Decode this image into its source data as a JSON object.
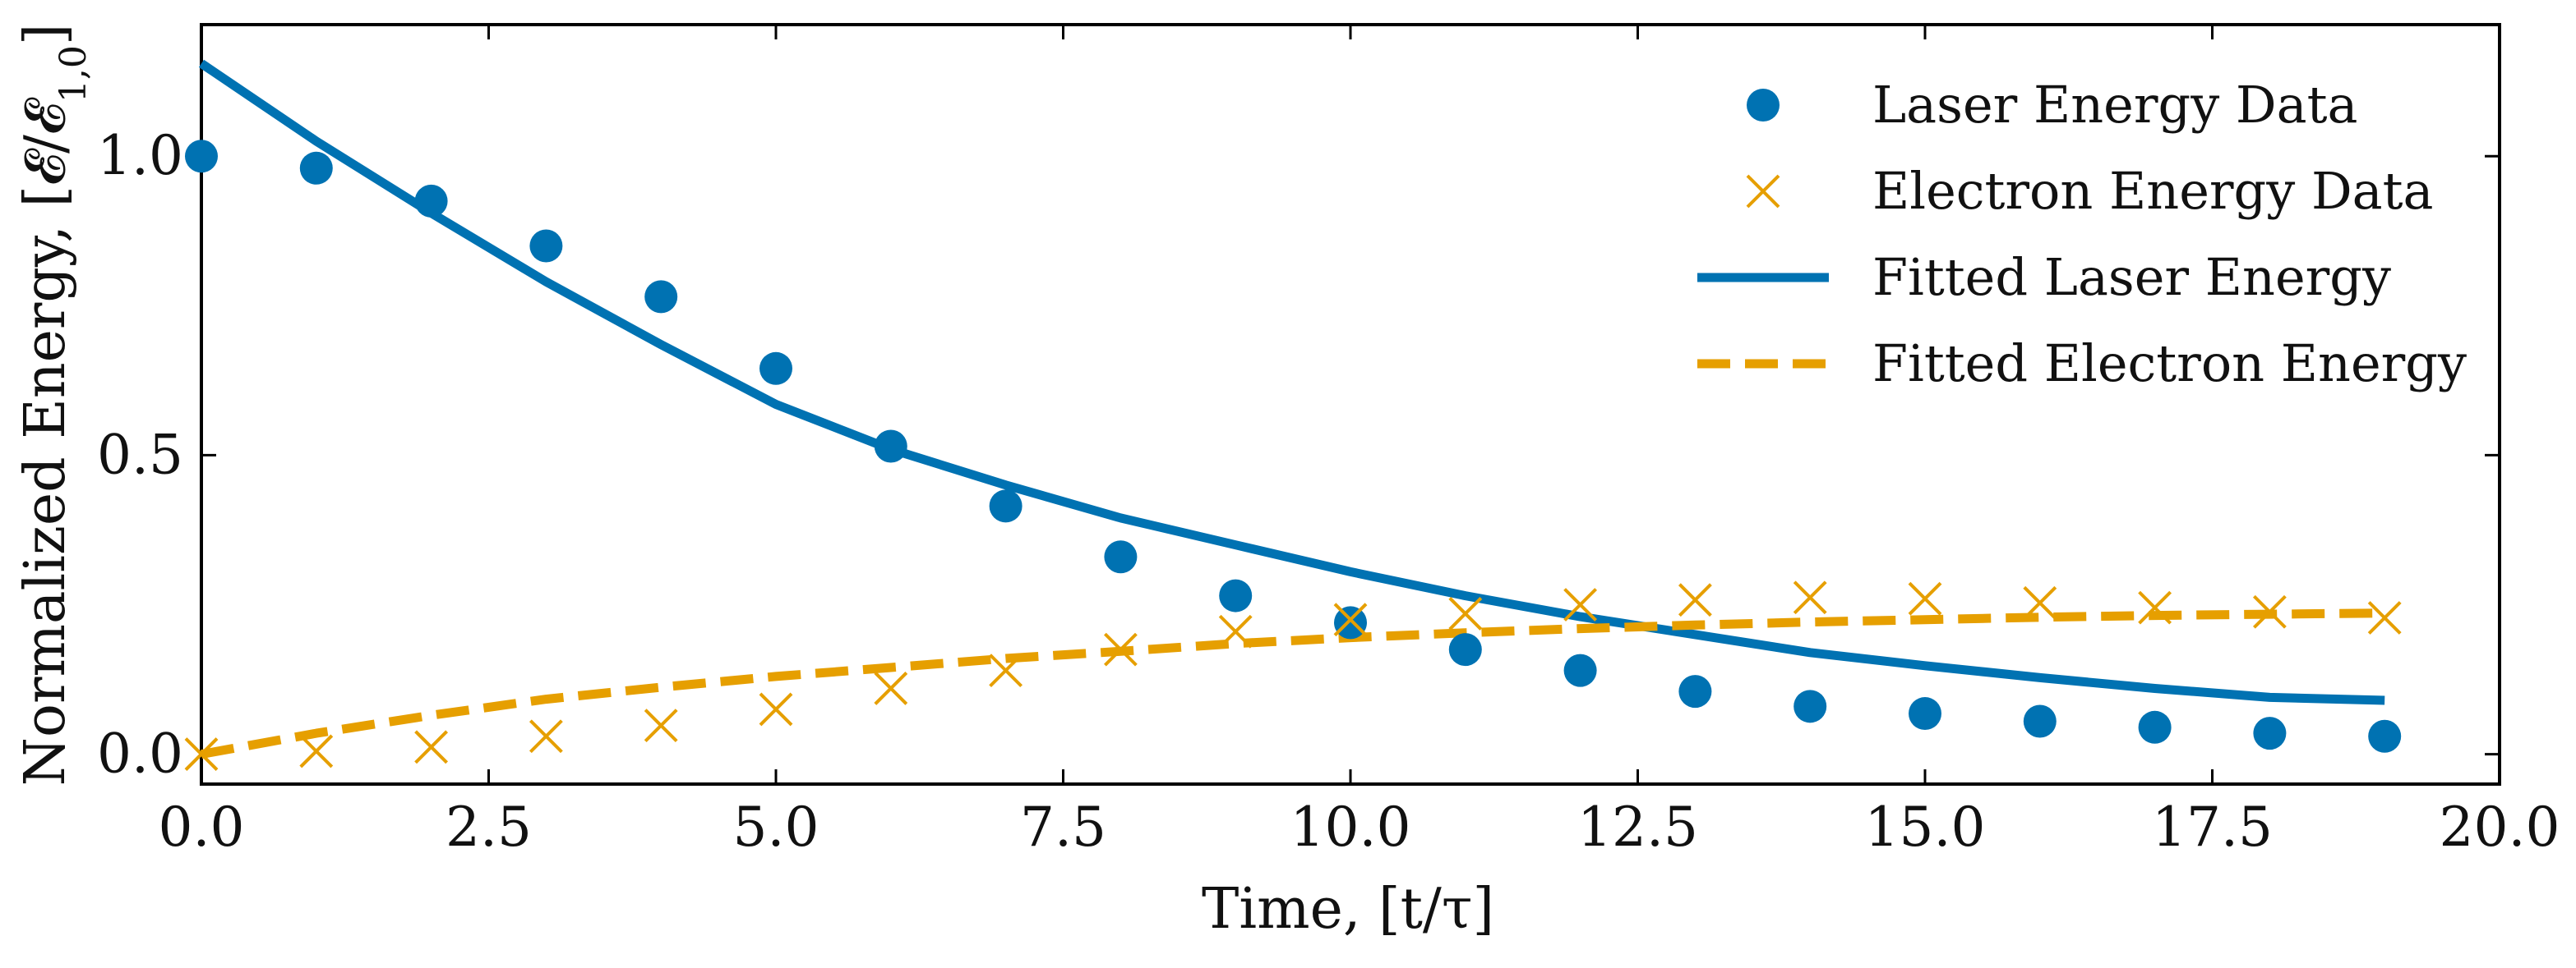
{
  "chart_data": {
    "type": "line",
    "title": "",
    "xlabel": "Time, [t/τ]",
    "ylabel_prefix": "Normalized Energy, ",
    "ylabel_math": "[𝓔/𝓔",
    "ylabel_sub": "1,0",
    "ylabel_close": "]",
    "xlim": [
      0,
      20
    ],
    "ylim": [
      -0.05,
      1.22
    ],
    "xticks": [
      "0.0",
      "2.5",
      "5.0",
      "7.5",
      "10.0",
      "12.5",
      "15.0",
      "17.5",
      "20.0"
    ],
    "yticks": [
      "0.0",
      "0.5",
      "1.0"
    ],
    "grid": false,
    "legend_position": "top-right",
    "series": [
      {
        "name": "Laser Energy Data",
        "kind": "scatter",
        "marker": "circle",
        "color": "#0072b2",
        "x": [
          0,
          1,
          2,
          3,
          4,
          5,
          6,
          7,
          8,
          9,
          10,
          11,
          12,
          13,
          14,
          15,
          16,
          17,
          18,
          19
        ],
        "y": [
          1.0,
          0.98,
          0.925,
          0.85,
          0.765,
          0.645,
          0.515,
          0.415,
          0.33,
          0.265,
          0.22,
          0.175,
          0.14,
          0.105,
          0.08,
          0.068,
          0.055,
          0.045,
          0.035,
          0.03
        ]
      },
      {
        "name": "Electron Energy Data",
        "kind": "scatter",
        "marker": "x",
        "color": "#e69f00",
        "x": [
          0,
          1,
          2,
          3,
          4,
          5,
          6,
          7,
          8,
          9,
          10,
          11,
          12,
          13,
          14,
          15,
          16,
          17,
          18,
          19
        ],
        "y": [
          0.0,
          0.005,
          0.012,
          0.03,
          0.048,
          0.075,
          0.11,
          0.14,
          0.175,
          0.205,
          0.225,
          0.235,
          0.25,
          0.258,
          0.262,
          0.26,
          0.253,
          0.245,
          0.238,
          0.228
        ]
      },
      {
        "name": "Fitted Laser Energy",
        "kind": "line",
        "style": "solid",
        "color": "#0072b2",
        "x": [
          0,
          1,
          2,
          3,
          4,
          5,
          6,
          7,
          8,
          9,
          10,
          11,
          12,
          13,
          14,
          15,
          16,
          17,
          18,
          19
        ],
        "y": [
          1.155,
          1.025,
          0.905,
          0.79,
          0.685,
          0.585,
          0.51,
          0.45,
          0.395,
          0.35,
          0.305,
          0.265,
          0.23,
          0.2,
          0.17,
          0.148,
          0.128,
          0.11,
          0.095,
          0.09
        ]
      },
      {
        "name": "Fitted Electron Energy",
        "kind": "line",
        "style": "dashed",
        "color": "#e69f00",
        "x": [
          0,
          1,
          2,
          3,
          4,
          5,
          6,
          7,
          8,
          9,
          10,
          11,
          12,
          13,
          14,
          15,
          16,
          17,
          18,
          19
        ],
        "y": [
          0.0,
          0.035,
          0.065,
          0.092,
          0.112,
          0.13,
          0.145,
          0.16,
          0.172,
          0.185,
          0.195,
          0.203,
          0.21,
          0.216,
          0.221,
          0.225,
          0.229,
          0.232,
          0.234,
          0.236
        ]
      }
    ]
  }
}
